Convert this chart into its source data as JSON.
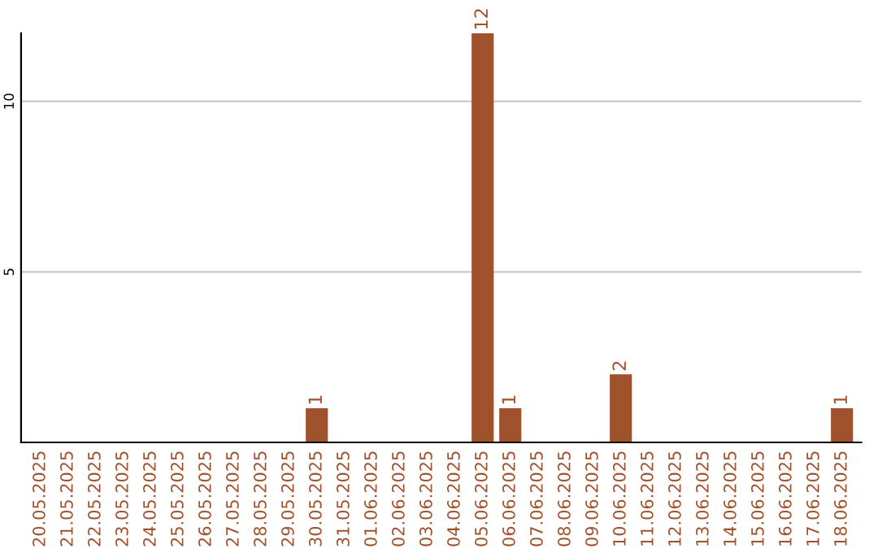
{
  "chart_data": {
    "type": "bar",
    "categories": [
      "20.05.2025",
      "21.05.2025",
      "22.05.2025",
      "23.05.2025",
      "24.05.2025",
      "25.05.2025",
      "26.05.2025",
      "27.05.2025",
      "28.05.2025",
      "29.05.2025",
      "30.05.2025",
      "31.05.2025",
      "01.06.2025",
      "02.06.2025",
      "03.06.2025",
      "04.06.2025",
      "05.06.2025",
      "06.06.2025",
      "07.06.2025",
      "08.06.2025",
      "09.06.2025",
      "10.06.2025",
      "11.06.2025",
      "12.06.2025",
      "13.06.2025",
      "14.06.2025",
      "15.06.2025",
      "16.06.2025",
      "17.06.2025",
      "18.06.2025"
    ],
    "values": [
      0,
      0,
      0,
      0,
      0,
      0,
      0,
      0,
      0,
      0,
      1,
      0,
      0,
      0,
      0,
      0,
      12,
      1,
      0,
      0,
      0,
      2,
      0,
      0,
      0,
      0,
      0,
      0,
      0,
      1
    ],
    "value_labels": [
      null,
      null,
      null,
      null,
      null,
      null,
      null,
      null,
      null,
      null,
      "1",
      null,
      null,
      null,
      null,
      null,
      "12",
      "1",
      null,
      null,
      null,
      "2",
      null,
      null,
      null,
      null,
      null,
      null,
      null,
      "1"
    ],
    "color": "#a0522d",
    "ylim": [
      0,
      12
    ],
    "yticks": [
      5,
      10
    ],
    "grid": "y"
  }
}
